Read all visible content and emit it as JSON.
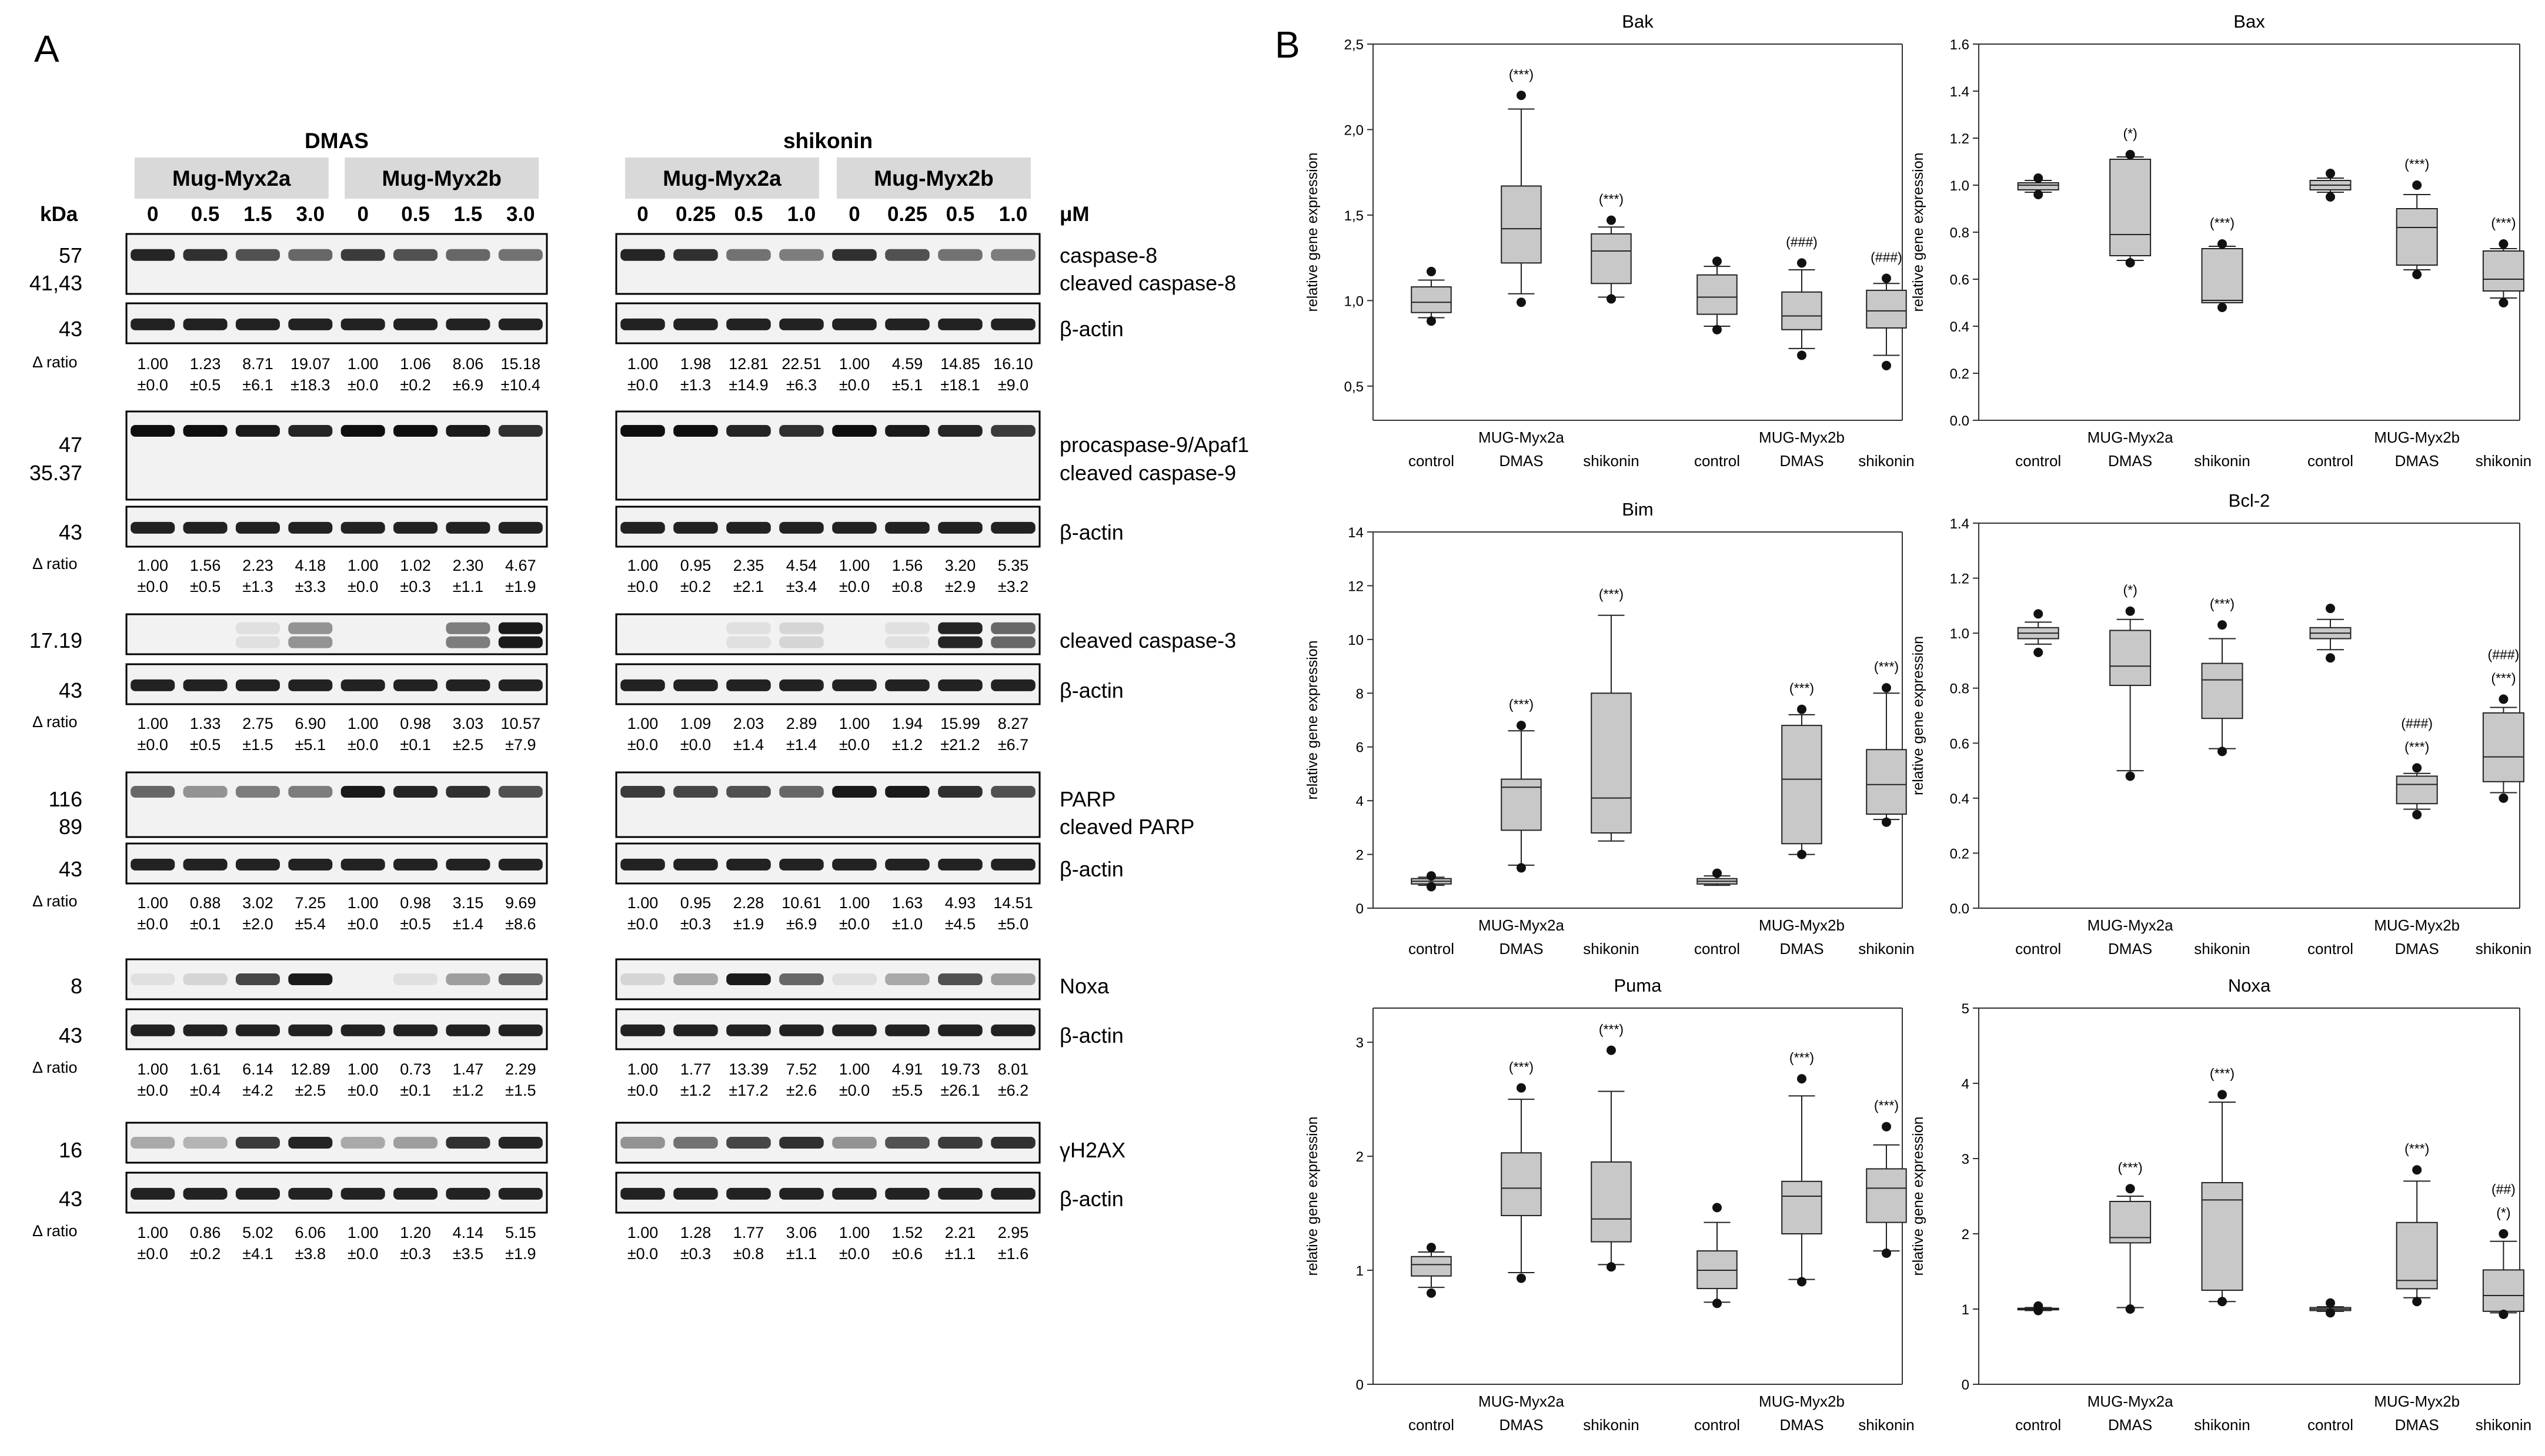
{
  "panel_labels": {
    "a": "A",
    "b": "B"
  },
  "blot": {
    "kda_label": "kDa",
    "um_label": "μM",
    "ratio_label": "Δ ratio",
    "left": {
      "treatment": "DMAS",
      "lines": [
        "Mug-Myx2a",
        "Mug-Myx2b"
      ],
      "doses": [
        "0",
        "0.5",
        "1.5",
        "3.0",
        "0",
        "0.5",
        "1.5",
        "3.0"
      ]
    },
    "right": {
      "treatment": "shikonin",
      "lines": [
        "Mug-Myx2a",
        "Mug-Myx2b"
      ],
      "doses": [
        "0",
        "0.25",
        "0.5",
        "1.0",
        "0",
        "0.25",
        "0.5",
        "1.0"
      ]
    },
    "groups": [
      {
        "kda": [
          "57",
          "41,43",
          "43"
        ],
        "proteins": [
          "caspase-8",
          "cleaved caspase-8",
          "β-actin"
        ],
        "left_means": [
          "1.00",
          "1.23",
          "8.71",
          "19.07",
          "1.00",
          "1.06",
          "8.06",
          "15.18"
        ],
        "left_sds": [
          "±0.0",
          "±0.5",
          "±6.1",
          "±18.3",
          "±0.0",
          "±0.2",
          "±6.9",
          "±10.4"
        ],
        "right_means": [
          "1.00",
          "1.98",
          "12.81",
          "22.51",
          "1.00",
          "4.59",
          "14.85",
          "16.10"
        ],
        "right_sds": [
          "±0.0",
          "±1.3",
          "±14.9",
          "±6.3",
          "±0.0",
          "±5.1",
          "±18.1",
          "±9.0"
        ]
      },
      {
        "kda": [
          "47",
          "35.37",
          "43"
        ],
        "proteins": [
          "procaspase-9/Apaf1",
          "cleaved caspase-9",
          "β-actin"
        ],
        "left_means": [
          "1.00",
          "1.56",
          "2.23",
          "4.18",
          "1.00",
          "1.02",
          "2.30",
          "4.67"
        ],
        "left_sds": [
          "±0.0",
          "±0.5",
          "±1.3",
          "±3.3",
          "±0.0",
          "±0.3",
          "±1.1",
          "±1.9"
        ],
        "right_means": [
          "1.00",
          "0.95",
          "2.35",
          "4.54",
          "1.00",
          "1.56",
          "3.20",
          "5.35"
        ],
        "right_sds": [
          "±0.0",
          "±0.2",
          "±2.1",
          "±3.4",
          "±0.0",
          "±0.8",
          "±2.9",
          "±3.2"
        ]
      },
      {
        "kda": [
          "17.19",
          "43"
        ],
        "proteins": [
          "cleaved caspase-3",
          "β-actin"
        ],
        "left_means": [
          "1.00",
          "1.33",
          "2.75",
          "6.90",
          "1.00",
          "0.98",
          "3.03",
          "10.57"
        ],
        "left_sds": [
          "±0.0",
          "±0.5",
          "±1.5",
          "±5.1",
          "±0.0",
          "±0.1",
          "±2.5",
          "±7.9"
        ],
        "right_means": [
          "1.00",
          "1.09",
          "2.03",
          "2.89",
          "1.00",
          "1.94",
          "15.99",
          "8.27"
        ],
        "right_sds": [
          "±0.0",
          "±0.0",
          "±1.4",
          "±1.4",
          "±0.0",
          "±1.2",
          "±21.2",
          "±6.7"
        ]
      },
      {
        "kda": [
          "116",
          "89",
          "43"
        ],
        "proteins": [
          "PARP",
          "cleaved PARP",
          "β-actin"
        ],
        "left_means": [
          "1.00",
          "0.88",
          "3.02",
          "7.25",
          "1.00",
          "0.98",
          "3.15",
          "9.69"
        ],
        "left_sds": [
          "±0.0",
          "±0.1",
          "±2.0",
          "±5.4",
          "±0.0",
          "±0.5",
          "±1.4",
          "±8.6"
        ],
        "right_means": [
          "1.00",
          "0.95",
          "2.28",
          "10.61",
          "1.00",
          "1.63",
          "4.93",
          "14.51"
        ],
        "right_sds": [
          "±0.0",
          "±0.3",
          "±1.9",
          "±6.9",
          "±0.0",
          "±1.0",
          "±4.5",
          "±5.0"
        ]
      },
      {
        "kda": [
          "8",
          "43"
        ],
        "proteins": [
          "Noxa",
          "β-actin"
        ],
        "left_means": [
          "1.00",
          "1.61",
          "6.14",
          "12.89",
          "1.00",
          "0.73",
          "1.47",
          "2.29"
        ],
        "left_sds": [
          "±0.0",
          "±0.4",
          "±4.2",
          "±2.5",
          "±0.0",
          "±0.1",
          "±1.2",
          "±1.5"
        ],
        "right_means": [
          "1.00",
          "1.77",
          "13.39",
          "7.52",
          "1.00",
          "4.91",
          "19.73",
          "8.01"
        ],
        "right_sds": [
          "±0.0",
          "±1.2",
          "±17.2",
          "±2.6",
          "±0.0",
          "±5.5",
          "±26.1",
          "±6.2"
        ]
      },
      {
        "kda": [
          "16",
          "43"
        ],
        "proteins": [
          "γH2AX",
          "β-actin"
        ],
        "left_means": [
          "1.00",
          "0.86",
          "5.02",
          "6.06",
          "1.00",
          "1.20",
          "4.14",
          "5.15"
        ],
        "left_sds": [
          "±0.0",
          "±0.2",
          "±4.1",
          "±3.8",
          "±0.0",
          "±0.3",
          "±3.5",
          "±1.9"
        ],
        "right_means": [
          "1.00",
          "1.28",
          "1.77",
          "3.06",
          "1.00",
          "1.52",
          "2.21",
          "2.95"
        ],
        "right_sds": [
          "±0.0",
          "±0.3",
          "±0.8",
          "±1.1",
          "±0.0",
          "±0.6",
          "±1.1",
          "±1.6"
        ]
      }
    ]
  },
  "chart_data": [
    {
      "type": "box",
      "title": "Bak",
      "ylabel": "relative gene expression",
      "ylim": [
        0.3,
        2.5
      ],
      "yticks": [
        "0,5",
        "1,0",
        "1,5",
        "2,0",
        "2,5"
      ],
      "group_labels": [
        "MUG-Myx2a",
        "MUG-Myx2b"
      ],
      "treatments": [
        "control",
        "DMAS",
        "shikonin"
      ],
      "boxes": [
        {
          "q1": 0.93,
          "median": 0.99,
          "q3": 1.08,
          "low": 0.9,
          "high": 1.12,
          "outliers": [
            1.17,
            0.88
          ],
          "annot": []
        },
        {
          "q1": 1.22,
          "median": 1.42,
          "q3": 1.67,
          "low": 1.04,
          "high": 2.12,
          "outliers": [
            2.2,
            0.99
          ],
          "annot": [
            "(***)"
          ]
        },
        {
          "q1": 1.1,
          "median": 1.29,
          "q3": 1.39,
          "low": 1.02,
          "high": 1.43,
          "outliers": [
            1.47,
            1.01
          ],
          "annot": [
            "(***)"
          ]
        },
        {
          "q1": 0.92,
          "median": 1.02,
          "q3": 1.15,
          "low": 0.85,
          "high": 1.2,
          "outliers": [
            1.23,
            0.83
          ],
          "annot": []
        },
        {
          "q1": 0.83,
          "median": 0.91,
          "q3": 1.05,
          "low": 0.72,
          "high": 1.18,
          "outliers": [
            1.22,
            0.68
          ],
          "annot": [
            "(###)"
          ]
        },
        {
          "q1": 0.84,
          "median": 0.94,
          "q3": 1.06,
          "low": 0.68,
          "high": 1.1,
          "outliers": [
            1.13,
            0.62
          ],
          "annot": [
            "(###)"
          ]
        }
      ]
    },
    {
      "type": "box",
      "title": "Bax",
      "ylabel": "relative gene expression",
      "ylim": [
        0.0,
        1.6
      ],
      "yticks": [
        "0.0",
        "0.2",
        "0.4",
        "0.6",
        "0.8",
        "1.0",
        "1.2",
        "1.4",
        "1.6"
      ],
      "group_labels": [
        "MUG-Myx2a",
        "MUG-Myx2b"
      ],
      "treatments": [
        "control",
        "DMAS",
        "shikonin"
      ],
      "boxes": [
        {
          "q1": 0.98,
          "median": 1.0,
          "q3": 1.01,
          "low": 0.97,
          "high": 1.02,
          "outliers": [
            1.03,
            0.96
          ],
          "annot": []
        },
        {
          "q1": 0.7,
          "median": 0.79,
          "q3": 1.11,
          "low": 0.68,
          "high": 1.12,
          "outliers": [
            1.13,
            0.67
          ],
          "annot": [
            "(*)"
          ]
        },
        {
          "q1": 0.5,
          "median": 0.51,
          "q3": 0.73,
          "low": 0.5,
          "high": 0.74,
          "outliers": [
            0.75,
            0.48
          ],
          "annot": [
            "(***)"
          ]
        },
        {
          "q1": 0.98,
          "median": 1.0,
          "q3": 1.02,
          "low": 0.97,
          "high": 1.03,
          "outliers": [
            1.05,
            0.95
          ],
          "annot": []
        },
        {
          "q1": 0.66,
          "median": 0.82,
          "q3": 0.9,
          "low": 0.64,
          "high": 0.96,
          "outliers": [
            1.0,
            0.62
          ],
          "annot": [
            "(***)"
          ]
        },
        {
          "q1": 0.55,
          "median": 0.6,
          "q3": 0.72,
          "low": 0.52,
          "high": 0.73,
          "outliers": [
            0.75,
            0.5
          ],
          "annot": [
            "(***)"
          ]
        }
      ]
    },
    {
      "type": "box",
      "title": "Bim",
      "ylabel": "relative gene expression",
      "ylim": [
        0,
        14
      ],
      "yticks": [
        "0",
        "2",
        "4",
        "6",
        "8",
        "10",
        "12",
        "14"
      ],
      "group_labels": [
        "MUG-Myx2a",
        "MUG-Myx2b"
      ],
      "treatments": [
        "control",
        "DMAS",
        "shikonin"
      ],
      "boxes": [
        {
          "q1": 0.9,
          "median": 1.0,
          "q3": 1.1,
          "low": 0.85,
          "high": 1.15,
          "outliers": [
            1.2,
            0.8
          ],
          "annot": []
        },
        {
          "q1": 2.9,
          "median": 4.5,
          "q3": 4.8,
          "low": 1.6,
          "high": 6.6,
          "outliers": [
            6.8,
            1.5
          ],
          "annot": [
            "(***)"
          ]
        },
        {
          "q1": 2.8,
          "median": 4.1,
          "q3": 8.0,
          "low": 2.5,
          "high": 10.9,
          "outliers": [],
          "annot": [
            "(***)"
          ]
        },
        {
          "q1": 0.9,
          "median": 1.0,
          "q3": 1.1,
          "low": 0.85,
          "high": 1.2,
          "outliers": [
            1.3
          ],
          "annot": []
        },
        {
          "q1": 2.4,
          "median": 4.8,
          "q3": 6.8,
          "low": 2.0,
          "high": 7.2,
          "outliers": [
            7.4,
            2.0
          ],
          "annot": [
            "(***)"
          ]
        },
        {
          "q1": 3.5,
          "median": 4.6,
          "q3": 5.9,
          "low": 3.3,
          "high": 8.0,
          "outliers": [
            8.2,
            3.2
          ],
          "annot": [
            "(***)"
          ]
        }
      ]
    },
    {
      "type": "box",
      "title": "Bcl-2",
      "ylabel": "relative gene expression",
      "ylim": [
        0.0,
        1.4
      ],
      "yticks": [
        "0.0",
        "0.2",
        "0.4",
        "0.6",
        "0.8",
        "1.0",
        "1.2",
        "1.4"
      ],
      "group_labels": [
        "MUG-Myx2a",
        "MUG-Myx2b"
      ],
      "treatments": [
        "control",
        "DMAS",
        "shikonin"
      ],
      "boxes": [
        {
          "q1": 0.98,
          "median": 1.0,
          "q3": 1.02,
          "low": 0.96,
          "high": 1.04,
          "outliers": [
            1.07,
            0.93
          ],
          "annot": []
        },
        {
          "q1": 0.81,
          "median": 0.88,
          "q3": 1.01,
          "low": 0.5,
          "high": 1.05,
          "outliers": [
            1.08,
            0.48
          ],
          "annot": [
            "(*)"
          ]
        },
        {
          "q1": 0.69,
          "median": 0.83,
          "q3": 0.89,
          "low": 0.58,
          "high": 0.98,
          "outliers": [
            1.03,
            0.57
          ],
          "annot": [
            "(***)"
          ]
        },
        {
          "q1": 0.98,
          "median": 1.0,
          "q3": 1.02,
          "low": 0.94,
          "high": 1.05,
          "outliers": [
            1.09,
            0.91
          ],
          "annot": []
        },
        {
          "q1": 0.38,
          "median": 0.45,
          "q3": 0.48,
          "low": 0.36,
          "high": 0.49,
          "outliers": [
            0.51,
            0.34
          ],
          "annot": [
            "(###)",
            "(***)"
          ]
        },
        {
          "q1": 0.46,
          "median": 0.55,
          "q3": 0.71,
          "low": 0.42,
          "high": 0.73,
          "outliers": [
            0.76,
            0.4
          ],
          "annot": [
            "(###)",
            "(***)"
          ]
        }
      ]
    },
    {
      "type": "box",
      "title": "Puma",
      "ylabel": "relative gene expression",
      "ylim": [
        0,
        3.3
      ],
      "yticks": [
        "0",
        "1",
        "2",
        "3"
      ],
      "group_labels": [
        "MUG-Myx2a",
        "MUG-Myx2b"
      ],
      "treatments": [
        "control",
        "DMAS",
        "shikonin"
      ],
      "boxes": [
        {
          "q1": 0.95,
          "median": 1.05,
          "q3": 1.12,
          "low": 0.85,
          "high": 1.16,
          "outliers": [
            1.2,
            0.8
          ],
          "annot": []
        },
        {
          "q1": 1.48,
          "median": 1.72,
          "q3": 2.03,
          "low": 0.98,
          "high": 2.5,
          "outliers": [
            2.6,
            0.93
          ],
          "annot": [
            "(***)"
          ]
        },
        {
          "q1": 1.25,
          "median": 1.45,
          "q3": 1.95,
          "low": 1.05,
          "high": 2.57,
          "outliers": [
            2.93,
            1.03
          ],
          "annot": [
            "(***)"
          ]
        },
        {
          "q1": 0.84,
          "median": 1.0,
          "q3": 1.17,
          "low": 0.72,
          "high": 1.42,
          "outliers": [
            1.55,
            0.71
          ],
          "annot": []
        },
        {
          "q1": 1.32,
          "median": 1.65,
          "q3": 1.78,
          "low": 0.92,
          "high": 2.53,
          "outliers": [
            2.68,
            0.9
          ],
          "annot": [
            "(***)"
          ]
        },
        {
          "q1": 1.42,
          "median": 1.72,
          "q3": 1.89,
          "low": 1.17,
          "high": 2.1,
          "outliers": [
            2.26,
            1.15
          ],
          "annot": [
            "(***)"
          ]
        }
      ]
    },
    {
      "type": "box",
      "title": "Noxa",
      "ylabel": "relative gene expression",
      "ylim": [
        0,
        5
      ],
      "yticks": [
        "0",
        "1",
        "2",
        "3",
        "4",
        "5"
      ],
      "group_labels": [
        "MUG-Myx2a",
        "MUG-Myx2b"
      ],
      "treatments": [
        "control",
        "DMAS",
        "shikonin"
      ],
      "boxes": [
        {
          "q1": 0.99,
          "median": 1.0,
          "q3": 1.01,
          "low": 0.98,
          "high": 1.02,
          "outliers": [
            1.04,
            0.98
          ],
          "annot": []
        },
        {
          "q1": 1.88,
          "median": 1.95,
          "q3": 2.43,
          "low": 1.02,
          "high": 2.5,
          "outliers": [
            2.6,
            1.0
          ],
          "annot": [
            "(***)"
          ]
        },
        {
          "q1": 1.25,
          "median": 2.45,
          "q3": 2.68,
          "low": 1.1,
          "high": 3.75,
          "outliers": [
            3.85,
            1.1
          ],
          "annot": [
            "(***)"
          ]
        },
        {
          "q1": 0.98,
          "median": 1.0,
          "q3": 1.02,
          "low": 0.97,
          "high": 1.03,
          "outliers": [
            1.08,
            0.95
          ],
          "annot": []
        },
        {
          "q1": 1.27,
          "median": 1.38,
          "q3": 2.15,
          "low": 1.15,
          "high": 2.7,
          "outliers": [
            2.85,
            1.1
          ],
          "annot": [
            "(***)"
          ]
        },
        {
          "q1": 0.97,
          "median": 1.18,
          "q3": 1.52,
          "low": 0.95,
          "high": 1.9,
          "outliers": [
            2.0,
            0.93
          ],
          "annot": [
            "(##)",
            "(*)"
          ]
        }
      ]
    }
  ]
}
